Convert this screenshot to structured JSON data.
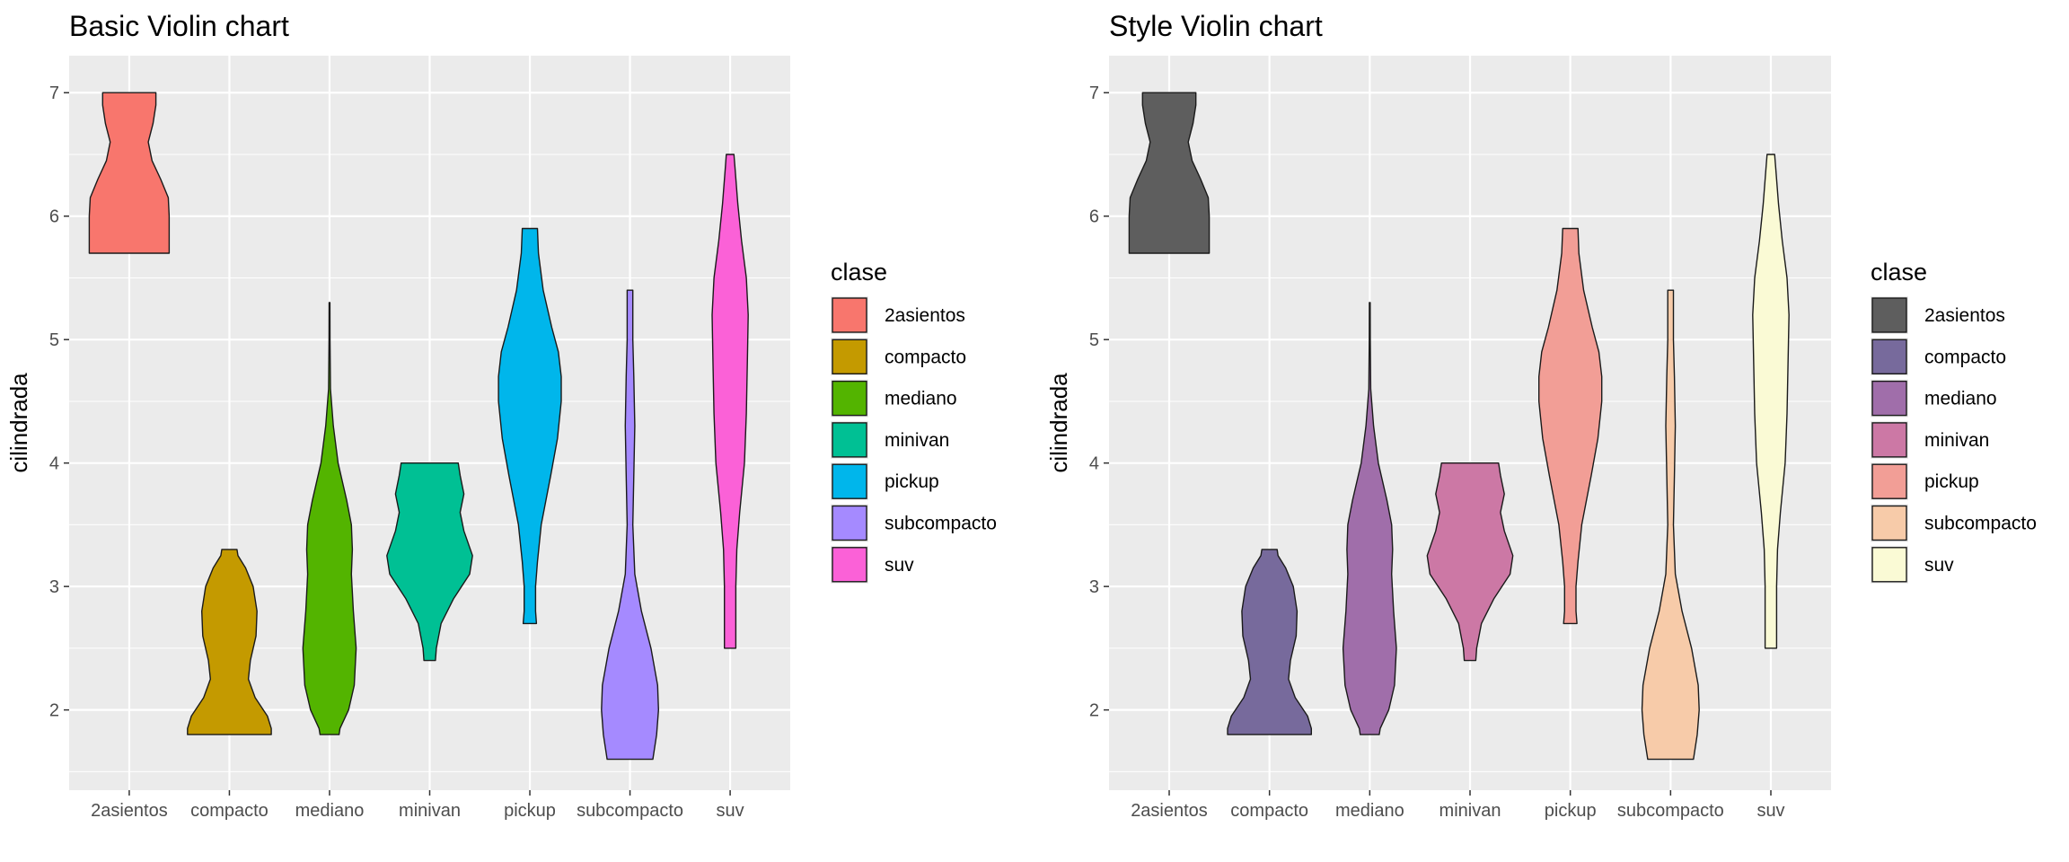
{
  "chart_data": [
    {
      "type": "violin",
      "title": "Basic Violin chart",
      "xlabel": "",
      "ylabel": "cilindrada",
      "ylim": [
        1.35,
        7.3
      ],
      "yticks": [
        2,
        3,
        4,
        5,
        6,
        7
      ],
      "categories": [
        "2asientos",
        "compacto",
        "mediano",
        "minivan",
        "pickup",
        "subcompacto",
        "suv"
      ],
      "legend": {
        "title": "clase",
        "position": "right"
      },
      "fill_colors": [
        "#F8766D",
        "#C49A00",
        "#53B400",
        "#00C094",
        "#00B6EB",
        "#A58AFF",
        "#FB61D7"
      ],
      "fill_opacity": 1,
      "series": [
        {
          "name": "2asientos",
          "min": 5.7,
          "max": 7.0,
          "profile": [
            [
              5.7,
              0.42
            ],
            [
              5.8,
              0.42
            ],
            [
              6.0,
              0.42
            ],
            [
              6.15,
              0.41
            ],
            [
              6.3,
              0.33
            ],
            [
              6.45,
              0.24
            ],
            [
              6.6,
              0.2
            ],
            [
              6.75,
              0.25
            ],
            [
              6.9,
              0.28
            ],
            [
              7.0,
              0.28
            ]
          ]
        },
        {
          "name": "compacto",
          "min": 1.8,
          "max": 3.3,
          "profile": [
            [
              1.8,
              0.44
            ],
            [
              1.85,
              0.44
            ],
            [
              1.95,
              0.4
            ],
            [
              2.1,
              0.27
            ],
            [
              2.25,
              0.2
            ],
            [
              2.4,
              0.22
            ],
            [
              2.6,
              0.28
            ],
            [
              2.8,
              0.29
            ],
            [
              3.0,
              0.25
            ],
            [
              3.15,
              0.17
            ],
            [
              3.25,
              0.09
            ],
            [
              3.3,
              0.08
            ]
          ]
        },
        {
          "name": "mediano",
          "min": 1.8,
          "max": 5.3,
          "profile": [
            [
              1.8,
              0.1
            ],
            [
              1.85,
              0.11
            ],
            [
              2.0,
              0.2
            ],
            [
              2.2,
              0.26
            ],
            [
              2.5,
              0.28
            ],
            [
              2.8,
              0.25
            ],
            [
              3.1,
              0.23
            ],
            [
              3.3,
              0.24
            ],
            [
              3.5,
              0.23
            ],
            [
              3.7,
              0.18
            ],
            [
              4.0,
              0.09
            ],
            [
              4.3,
              0.04
            ],
            [
              4.6,
              0.01
            ],
            [
              5.0,
              0.005
            ],
            [
              5.3,
              0.004
            ]
          ]
        },
        {
          "name": "minivan",
          "min": 2.4,
          "max": 4.0,
          "profile": [
            [
              2.4,
              0.06
            ],
            [
              2.5,
              0.07
            ],
            [
              2.7,
              0.12
            ],
            [
              2.9,
              0.25
            ],
            [
              3.1,
              0.42
            ],
            [
              3.25,
              0.45
            ],
            [
              3.45,
              0.36
            ],
            [
              3.6,
              0.32
            ],
            [
              3.75,
              0.36
            ],
            [
              3.9,
              0.32
            ],
            [
              4.0,
              0.3
            ]
          ]
        },
        {
          "name": "pickup",
          "min": 2.7,
          "max": 5.9,
          "profile": [
            [
              2.7,
              0.07
            ],
            [
              2.8,
              0.06
            ],
            [
              3.0,
              0.06
            ],
            [
              3.2,
              0.08
            ],
            [
              3.5,
              0.12
            ],
            [
              3.9,
              0.22
            ],
            [
              4.2,
              0.29
            ],
            [
              4.5,
              0.33
            ],
            [
              4.7,
              0.33
            ],
            [
              4.9,
              0.3
            ],
            [
              5.1,
              0.23
            ],
            [
              5.4,
              0.14
            ],
            [
              5.7,
              0.09
            ],
            [
              5.9,
              0.08
            ]
          ]
        },
        {
          "name": "subcompacto",
          "min": 1.6,
          "max": 5.4,
          "profile": [
            [
              1.6,
              0.24
            ],
            [
              1.8,
              0.28
            ],
            [
              2.0,
              0.3
            ],
            [
              2.2,
              0.29
            ],
            [
              2.5,
              0.22
            ],
            [
              2.8,
              0.12
            ],
            [
              3.1,
              0.05
            ],
            [
              3.5,
              0.03
            ],
            [
              3.9,
              0.04
            ],
            [
              4.3,
              0.05
            ],
            [
              4.7,
              0.04
            ],
            [
              5.0,
              0.03
            ],
            [
              5.2,
              0.03
            ],
            [
              5.4,
              0.03
            ]
          ]
        },
        {
          "name": "suv",
          "min": 2.5,
          "max": 6.5,
          "profile": [
            [
              2.5,
              0.06
            ],
            [
              2.8,
              0.06
            ],
            [
              3.0,
              0.06
            ],
            [
              3.3,
              0.07
            ],
            [
              3.6,
              0.1
            ],
            [
              4.0,
              0.15
            ],
            [
              4.4,
              0.17
            ],
            [
              4.8,
              0.18
            ],
            [
              5.2,
              0.19
            ],
            [
              5.5,
              0.17
            ],
            [
              5.8,
              0.12
            ],
            [
              6.1,
              0.08
            ],
            [
              6.4,
              0.05
            ],
            [
              6.5,
              0.04
            ]
          ]
        }
      ]
    },
    {
      "type": "violin",
      "title": "Style Violin chart",
      "xlabel": "",
      "ylabel": "cilindrada",
      "ylim": [
        1.35,
        7.3
      ],
      "yticks": [
        2,
        3,
        4,
        5,
        6,
        7
      ],
      "categories": [
        "2asientos",
        "compacto",
        "mediano",
        "minivan",
        "pickup",
        "subcompacto",
        "suv"
      ],
      "legend": {
        "title": "clase",
        "position": "right"
      },
      "fill_colors": [
        "#5E5E5E",
        "#776A9C",
        "#A06EAA",
        "#CC78A5",
        "#F29E96",
        "#F7CBA9",
        "#FAFAD5"
      ],
      "fill_opacity": 1,
      "series": [
        {
          "name": "2asientos",
          "min": 5.7,
          "max": 7.0,
          "profile": [
            [
              5.7,
              0.42
            ],
            [
              5.8,
              0.42
            ],
            [
              6.0,
              0.42
            ],
            [
              6.15,
              0.41
            ],
            [
              6.3,
              0.33
            ],
            [
              6.45,
              0.24
            ],
            [
              6.6,
              0.2
            ],
            [
              6.75,
              0.25
            ],
            [
              6.9,
              0.28
            ],
            [
              7.0,
              0.28
            ]
          ]
        },
        {
          "name": "compacto",
          "min": 1.8,
          "max": 3.3,
          "profile": [
            [
              1.8,
              0.44
            ],
            [
              1.85,
              0.44
            ],
            [
              1.95,
              0.4
            ],
            [
              2.1,
              0.27
            ],
            [
              2.25,
              0.2
            ],
            [
              2.4,
              0.22
            ],
            [
              2.6,
              0.28
            ],
            [
              2.8,
              0.29
            ],
            [
              3.0,
              0.25
            ],
            [
              3.15,
              0.17
            ],
            [
              3.25,
              0.09
            ],
            [
              3.3,
              0.08
            ]
          ]
        },
        {
          "name": "mediano",
          "min": 1.8,
          "max": 5.3,
          "profile": [
            [
              1.8,
              0.1
            ],
            [
              1.85,
              0.11
            ],
            [
              2.0,
              0.2
            ],
            [
              2.2,
              0.26
            ],
            [
              2.5,
              0.28
            ],
            [
              2.8,
              0.25
            ],
            [
              3.1,
              0.23
            ],
            [
              3.3,
              0.24
            ],
            [
              3.5,
              0.23
            ],
            [
              3.7,
              0.18
            ],
            [
              4.0,
              0.09
            ],
            [
              4.3,
              0.04
            ],
            [
              4.6,
              0.01
            ],
            [
              5.0,
              0.005
            ],
            [
              5.3,
              0.004
            ]
          ]
        },
        {
          "name": "minivan",
          "min": 2.4,
          "max": 4.0,
          "profile": [
            [
              2.4,
              0.06
            ],
            [
              2.5,
              0.07
            ],
            [
              2.7,
              0.12
            ],
            [
              2.9,
              0.25
            ],
            [
              3.1,
              0.42
            ],
            [
              3.25,
              0.45
            ],
            [
              3.45,
              0.36
            ],
            [
              3.6,
              0.32
            ],
            [
              3.75,
              0.36
            ],
            [
              3.9,
              0.32
            ],
            [
              4.0,
              0.3
            ]
          ]
        },
        {
          "name": "pickup",
          "min": 2.7,
          "max": 5.9,
          "profile": [
            [
              2.7,
              0.07
            ],
            [
              2.8,
              0.06
            ],
            [
              3.0,
              0.06
            ],
            [
              3.2,
              0.08
            ],
            [
              3.5,
              0.12
            ],
            [
              3.9,
              0.22
            ],
            [
              4.2,
              0.29
            ],
            [
              4.5,
              0.33
            ],
            [
              4.7,
              0.33
            ],
            [
              4.9,
              0.3
            ],
            [
              5.1,
              0.23
            ],
            [
              5.4,
              0.14
            ],
            [
              5.7,
              0.09
            ],
            [
              5.9,
              0.08
            ]
          ]
        },
        {
          "name": "subcompacto",
          "min": 1.6,
          "max": 5.4,
          "profile": [
            [
              1.6,
              0.24
            ],
            [
              1.8,
              0.28
            ],
            [
              2.0,
              0.3
            ],
            [
              2.2,
              0.29
            ],
            [
              2.5,
              0.22
            ],
            [
              2.8,
              0.12
            ],
            [
              3.1,
              0.05
            ],
            [
              3.5,
              0.03
            ],
            [
              3.9,
              0.04
            ],
            [
              4.3,
              0.05
            ],
            [
              4.7,
              0.04
            ],
            [
              5.0,
              0.03
            ],
            [
              5.2,
              0.03
            ],
            [
              5.4,
              0.03
            ]
          ]
        },
        {
          "name": "suv",
          "min": 2.5,
          "max": 6.5,
          "profile": [
            [
              2.5,
              0.06
            ],
            [
              2.8,
              0.06
            ],
            [
              3.0,
              0.06
            ],
            [
              3.3,
              0.07
            ],
            [
              3.6,
              0.1
            ],
            [
              4.0,
              0.15
            ],
            [
              4.4,
              0.17
            ],
            [
              4.8,
              0.18
            ],
            [
              5.2,
              0.19
            ],
            [
              5.5,
              0.17
            ],
            [
              5.8,
              0.12
            ],
            [
              6.1,
              0.08
            ],
            [
              6.4,
              0.05
            ],
            [
              6.5,
              0.04
            ]
          ]
        }
      ]
    }
  ]
}
